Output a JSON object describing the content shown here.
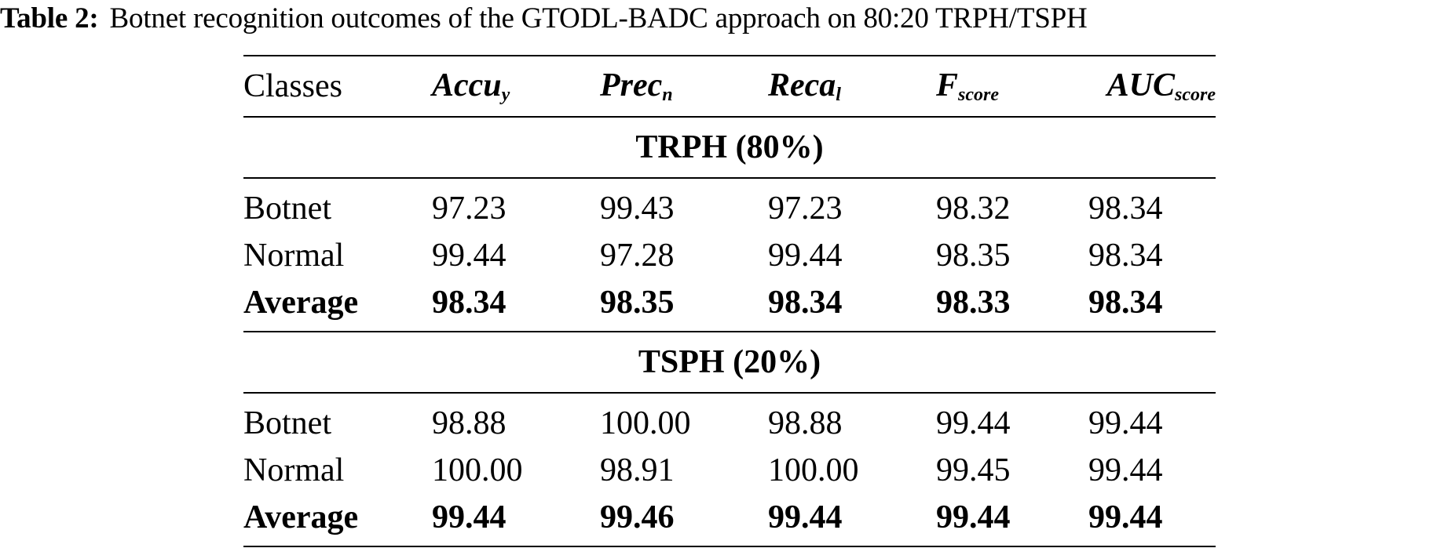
{
  "caption": {
    "label": "Table 2:",
    "text": "Botnet recognition outcomes of the GTODL-BADC approach on 80:20 TRPH/TSPH"
  },
  "table": {
    "header": {
      "classes": "Classes",
      "metrics": [
        {
          "base": "Accu",
          "sub": "y"
        },
        {
          "base": "Prec",
          "sub": "n"
        },
        {
          "base": "Reca",
          "sub": "l"
        },
        {
          "base": "F",
          "sub": "score"
        },
        {
          "base": "AUC",
          "sub": "score"
        }
      ]
    },
    "sections": [
      {
        "title": "TRPH (80%)",
        "rows": [
          {
            "cls": "Botnet",
            "values": [
              "97.23",
              "99.43",
              "97.23",
              "98.32",
              "98.34"
            ]
          },
          {
            "cls": "Normal",
            "values": [
              "99.44",
              "97.28",
              "99.44",
              "98.35",
              "98.34"
            ]
          },
          {
            "cls": "Average",
            "values": [
              "98.34",
              "98.35",
              "98.34",
              "98.33",
              "98.34"
            ]
          }
        ]
      },
      {
        "title": "TSPH (20%)",
        "rows": [
          {
            "cls": "Botnet",
            "values": [
              "98.88",
              "100.00",
              "98.88",
              "99.44",
              "99.44"
            ]
          },
          {
            "cls": "Normal",
            "values": [
              "100.00",
              "98.91",
              "100.00",
              "99.45",
              "99.44"
            ]
          },
          {
            "cls": "Average",
            "values": [
              "99.44",
              "99.46",
              "99.44",
              "99.44",
              "99.44"
            ]
          }
        ]
      }
    ]
  }
}
